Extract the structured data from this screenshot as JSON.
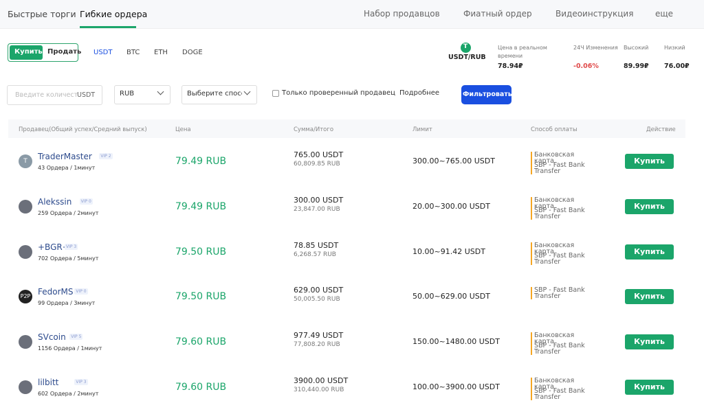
{
  "nav": {
    "tabs": [
      "Быстрые торги",
      "Гибкие ордера"
    ],
    "links": [
      "Набор продавцов",
      "Фиатный ордер",
      "Видеоинструкция",
      "еще"
    ]
  },
  "trade": {
    "toggle": [
      "Купить",
      "Продать"
    ],
    "coins": [
      "USDT",
      "BTC",
      "ETH",
      "DOGE"
    ]
  },
  "market": {
    "pair": "USDT/RUB",
    "icon": "T",
    "stats": [
      {
        "label": "Цена в реальном времени",
        "value": "78.94₽"
      },
      {
        "label": "24Ч Изменения",
        "value": "-0.06%"
      },
      {
        "label": "Высокий",
        "value": "89.99₽"
      },
      {
        "label": "Низкий",
        "value": "76.00₽"
      }
    ]
  },
  "filters": {
    "amount_placeholder": "Введите количест",
    "amount_unit": "USDT",
    "currency": "RUB",
    "payment": "Выберите способ",
    "checkbox": "Только проверенный продавец",
    "more": "Подробнее",
    "button": "Фильтровать"
  },
  "table": {
    "headers": [
      "Продавец(Общий успех/Средний выпуск)",
      "Цена",
      "Сумма/Итого",
      "Лимит",
      "Способ оплаты",
      "Действие"
    ],
    "rows": [
      {
        "avatar": "T",
        "name": "TraderMaster",
        "vip": "VIP 2",
        "orders": "43 Ордера / 1минут",
        "price": "79.49 RUB",
        "amount": "765.00 USDT",
        "total": "60,809.85 RUB",
        "limit": "300.00~765.00 USDT",
        "payments": [
          "Банковская карта",
          "SBP - Fast Bank Transfer"
        ],
        "action": "Купить"
      },
      {
        "name": "Alekssin",
        "vip": "VIP 0",
        "orders": "259 Ордера / 2минут",
        "price": "79.49 RUB",
        "amount": "300.00 USDT",
        "total": "23,847.00 RUB",
        "limit": "20.00~300.00 USDT",
        "payments": [
          "Банковская карта",
          "SBP - Fast Bank Transfer"
        ],
        "action": "Купить"
      },
      {
        "name": "+BGR+",
        "vip": "VIP 3",
        "orders": "702 Ордера / 5минут",
        "price": "79.50 RUB",
        "amount": "78.85 USDT",
        "total": "6,268.57 RUB",
        "limit": "10.00~91.42 USDT",
        "payments": [
          "Банковская карта",
          "SBP - Fast Bank Transfer"
        ],
        "action": "Купить"
      },
      {
        "avatar": "P2P",
        "name": "FedorMS",
        "vip": "VIP 0",
        "orders": "99 Ордера / 3минут",
        "price": "79.50 RUB",
        "amount": "629.00 USDT",
        "total": "50,005.50 RUB",
        "limit": "50.00~629.00 USDT",
        "payments": [
          "SBP - Fast Bank Transfer"
        ],
        "action": "Купить"
      },
      {
        "name": "SVcoin",
        "vip": "VIP 5",
        "orders": "1156 Ордера / 1минут",
        "price": "79.60 RUB",
        "amount": "977.49 USDT",
        "total": "77,808.20 RUB",
        "limit": "150.00~1480.00 USDT",
        "payments": [
          "Банковская карта",
          "SBP - Fast Bank Transfer"
        ],
        "action": "Купить"
      },
      {
        "name": "lilbitt",
        "vip": "VIP 3",
        "orders": "602 Ордера / 2минут",
        "price": "79.60 RUB",
        "amount": "3900.00 USDT",
        "total": "310,440.00 RUB",
        "limit": "100.00~3900.00 USDT",
        "payments": [
          "Банковская карта",
          "SBP - Fast Bank Transfer"
        ],
        "action": "Купить"
      }
    ]
  }
}
